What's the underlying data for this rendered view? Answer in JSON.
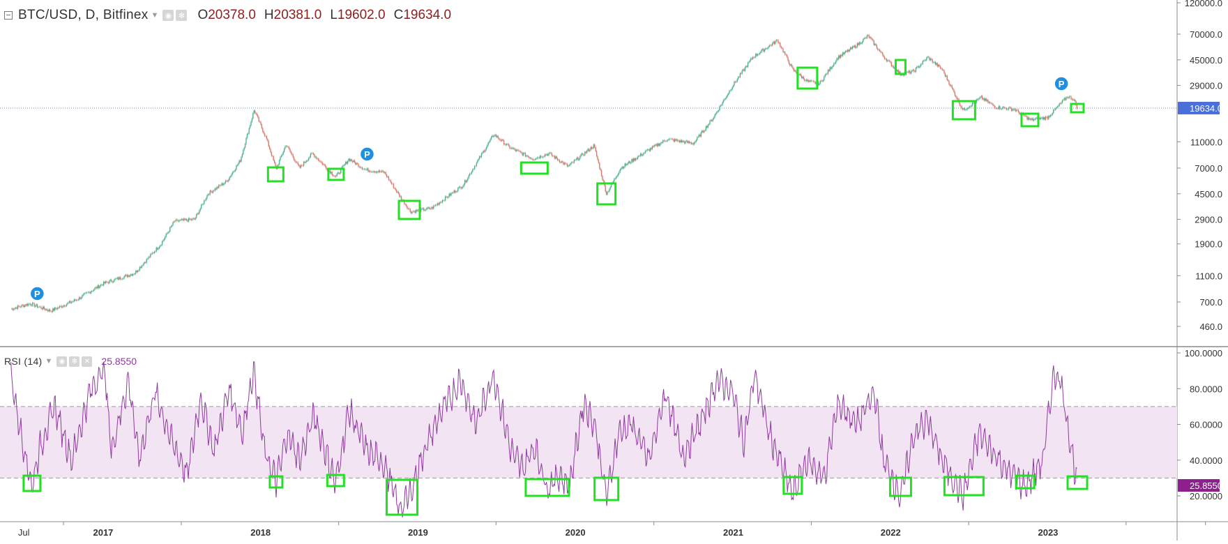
{
  "header": {
    "symbol": "BTC/USD, D, Bitfinex",
    "ohlc": [
      {
        "label": "O",
        "value": "20378.0"
      },
      {
        "label": "H",
        "value": "20381.0"
      },
      {
        "label": "L",
        "value": "19602.0"
      },
      {
        "label": "C",
        "value": "19634.0"
      }
    ]
  },
  "rsi_header": {
    "name": "RSI (14)",
    "value": "25.8550"
  },
  "colors": {
    "up_candle": "#4fb18f",
    "down_candle": "#d77a6e",
    "rsi_line": "#8e3a9e",
    "rsi_band_fill": "#f2e4f2",
    "highlight_box": "#22e022",
    "pivot_marker": "#1f8fe0",
    "price_label_bg": "#4a6fd8",
    "rsi_label_bg": "#8e1f8e"
  },
  "chart_data": [
    {
      "type": "line",
      "title": "BTC/USD, D, Bitfinex",
      "scale": "log",
      "ylim": [
        380,
        130000
      ],
      "y_ticks": [
        460,
        700,
        1100,
        1900,
        2900,
        4500,
        7000,
        11000,
        19634,
        29000,
        45000,
        70000,
        120000
      ],
      "y_tick_labels": [
        "460.0",
        "700.0",
        "1100.0",
        "1900.0",
        "2900.0",
        "4500.0",
        "7000.0",
        "11000.0",
        "19634.0",
        "29000.0",
        "45000.0",
        "70000.0",
        "120000.0"
      ],
      "last_price_label": "19634.0",
      "x_ticks": [
        "Jul",
        "2017",
        "2018",
        "2019",
        "2020",
        "2021",
        "2022",
        "2023"
      ],
      "series": [
        {
          "x": [
            "2016-06-01",
            "2016-07-15",
            "2016-09-01",
            "2016-11-01",
            "2017-01-01",
            "2017-03-15",
            "2017-05-15",
            "2017-06-15",
            "2017-08-01",
            "2017-09-01",
            "2017-10-15",
            "2017-11-15",
            "2017-12-17",
            "2018-01-15",
            "2018-02-06",
            "2018-03-01",
            "2018-04-01",
            "2018-05-01",
            "2018-06-24",
            "2018-07-25",
            "2018-09-01",
            "2018-10-15",
            "2018-11-20",
            "2018-12-15",
            "2019-02-01",
            "2019-04-15",
            "2019-06-26",
            "2019-08-01",
            "2019-09-25",
            "2019-11-01",
            "2019-12-15",
            "2020-02-13",
            "2020-03-13",
            "2020-04-15",
            "2020-06-15",
            "2020-08-01",
            "2020-10-01",
            "2020-11-15",
            "2020-12-31",
            "2021-02-15",
            "2021-04-14",
            "2021-05-19",
            "2021-06-22",
            "2021-07-20",
            "2021-09-01",
            "2021-10-15",
            "2021-11-10",
            "2021-12-15",
            "2022-01-24",
            "2022-02-24",
            "2022-03-28",
            "2022-05-01",
            "2022-06-18",
            "2022-07-30",
            "2022-09-01",
            "2022-10-15",
            "2022-11-21",
            "2022-12-31",
            "2023-02-15",
            "2023-03-01",
            "2023-03-10"
          ],
          "y": [
            620,
            680,
            600,
            730,
            960,
            1150,
            1900,
            2800,
            2900,
            4500,
            5600,
            8000,
            19000,
            11500,
            6900,
            10500,
            7000,
            9000,
            6000,
            8200,
            6800,
            6500,
            4300,
            3300,
            3500,
            5200,
            12500,
            10000,
            8200,
            9000,
            7200,
            10300,
            4500,
            7000,
            9400,
            11500,
            10700,
            16500,
            29000,
            47000,
            63000,
            38000,
            31000,
            29900,
            47000,
            58000,
            68000,
            48000,
            35000,
            37000,
            47000,
            38000,
            18900,
            23500,
            20000,
            19200,
            16000,
            16700,
            24000,
            23000,
            19634
          ]
        }
      ]
    },
    {
      "type": "line",
      "title": "RSI (14)",
      "ylim": [
        0,
        100
      ],
      "y_ticks": [
        20,
        40,
        60,
        80,
        100
      ],
      "y_tick_labels": [
        "20.0000",
        "40.0000",
        "60.0000",
        "80.0000",
        "100.0000"
      ],
      "bands": [
        30,
        70
      ],
      "last_value_label": "25.8550",
      "series": [
        {
          "x": [
            "2016-06-01",
            "2016-06-20",
            "2016-07-20",
            "2016-08-05",
            "2016-09-10",
            "2016-10-20",
            "2016-12-01",
            "2017-01-04",
            "2017-01-20",
            "2017-03-01",
            "2017-03-25",
            "2017-05-01",
            "2017-06-10",
            "2017-07-15",
            "2017-08-15",
            "2017-09-15",
            "2017-10-20",
            "2017-11-20",
            "2017-12-16",
            "2018-01-10",
            "2018-02-06",
            "2018-03-05",
            "2018-04-01",
            "2018-05-05",
            "2018-06-24",
            "2018-07-25",
            "2018-09-05",
            "2018-10-15",
            "2018-11-20",
            "2018-12-15",
            "2019-01-15",
            "2019-02-20",
            "2019-04-10",
            "2019-05-15",
            "2019-06-25",
            "2019-08-05",
            "2019-09-01",
            "2019-09-28",
            "2019-10-28",
            "2019-11-25",
            "2019-12-18",
            "2020-01-20",
            "2020-02-15",
            "2020-03-13",
            "2020-04-10",
            "2020-05-10",
            "2020-06-20",
            "2020-07-28",
            "2020-09-05",
            "2020-10-20",
            "2020-11-25",
            "2020-12-31",
            "2021-01-25",
            "2021-02-20",
            "2021-03-25",
            "2021-05-19",
            "2021-06-22",
            "2021-07-31",
            "2021-09-01",
            "2021-10-15",
            "2021-11-25",
            "2021-12-15",
            "2022-01-24",
            "2022-02-25",
            "2022-03-28",
            "2022-04-30",
            "2022-06-18",
            "2022-07-25",
            "2022-08-25",
            "2022-09-25",
            "2022-11-09",
            "2022-12-20",
            "2023-01-14",
            "2023-01-30",
            "2023-02-25",
            "2023-03-10"
          ],
          "y": [
            88,
            60,
            25,
            45,
            70,
            40,
            78,
            92,
            45,
            85,
            40,
            78,
            50,
            32,
            75,
            45,
            80,
            55,
            92,
            45,
            28,
            55,
            40,
            65,
            27,
            68,
            45,
            38,
            12,
            22,
            45,
            65,
            85,
            60,
            88,
            45,
            35,
            48,
            24,
            32,
            25,
            72,
            60,
            19,
            55,
            60,
            40,
            78,
            42,
            62,
            85,
            78,
            50,
            88,
            55,
            21,
            40,
            30,
            72,
            60,
            78,
            40,
            20,
            55,
            62,
            40,
            20,
            55,
            45,
            35,
            25,
            40,
            88,
            85,
            45,
            25.855
          ]
        }
      ]
    }
  ],
  "highlights": {
    "price_boxes": [
      "2018-02-05",
      "2018-06-25",
      "2018-12-12",
      "2019-09-28",
      "2020-03-13",
      "2021-06-22",
      "2022-01-24",
      "2022-06-20",
      "2022-11-20",
      "2023-03-10"
    ],
    "rsi_boxes": [
      "2016-07-20",
      "2018-02-06",
      "2018-06-24",
      "2018-11-25",
      "2019-10-28",
      "2020-03-13",
      "2021-05-19",
      "2022-01-24",
      "2022-06-20",
      "2022-11-09",
      "2023-03-10"
    ],
    "pivot_markers": [
      {
        "date": "2016-08-01",
        "label": "P"
      },
      {
        "date": "2018-09-05",
        "label": "P"
      },
      {
        "date": "2023-02-01",
        "label": "P"
      }
    ]
  }
}
